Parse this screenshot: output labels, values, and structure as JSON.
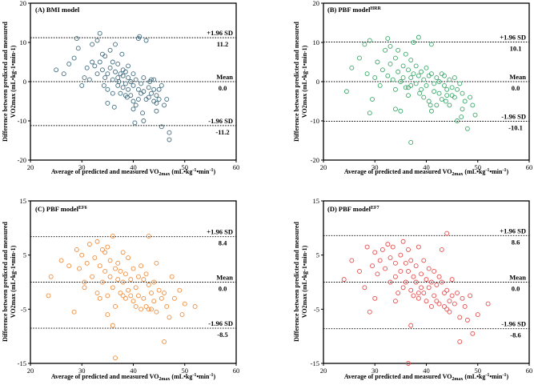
{
  "chart_data": [
    {
      "type": "scatter",
      "title": "(A) BMI model",
      "title_sup": "",
      "xlabel_prefix": "Average of predicted and measured VO",
      "xlabel_sub": "2max",
      "xlabel_suffix": " (mL•kg",
      "xlabel_exp1": "-1",
      "xlabel_mid": "•min",
      "xlabel_exp2": "-1",
      "xlabel_end": ")",
      "ylabel_line1": "Difference between predicted and measured",
      "ylabel_line2": "VO2max (mL•kg-1•min-1)",
      "xlim": [
        20,
        60
      ],
      "ylim": [
        -20,
        20
      ],
      "xticks": [
        20,
        30,
        40,
        50,
        60
      ],
      "yticks": [
        -20,
        -10,
        0,
        10,
        20
      ],
      "color": "#3f6b7f",
      "lines": [
        {
          "y": 11.2,
          "label_top": "+1.96 SD",
          "label_bottom": "11.2"
        },
        {
          "y": 0.0,
          "label_top": "Mean",
          "label_bottom": "0.0"
        },
        {
          "y": -11.2,
          "label_top": "-1.96 SD",
          "label_bottom": "-11.2"
        }
      ],
      "x": [
        25.0,
        26.5,
        27.5,
        28.5,
        29.0,
        29.3,
        30.0,
        30.5,
        31.0,
        31.5,
        32.0,
        32.0,
        32.5,
        33.0,
        33.0,
        33.5,
        33.5,
        34.0,
        34.0,
        34.3,
        34.5,
        34.5,
        35.0,
        35.0,
        35.0,
        35.5,
        35.5,
        36.0,
        36.0,
        36.0,
        36.5,
        36.5,
        37.0,
        37.0,
        37.0,
        37.2,
        37.5,
        37.5,
        37.8,
        38.0,
        38.0,
        38.0,
        38.5,
        38.5,
        38.8,
        39.0,
        39.0,
        39.0,
        39.5,
        39.5,
        40.0,
        40.0,
        40.0,
        40.3,
        40.5,
        40.5,
        41.0,
        41.0,
        41.0,
        41.2,
        41.5,
        41.5,
        42.0,
        42.0,
        42.0,
        42.5,
        42.5,
        43.0,
        43.0,
        43.2,
        43.5,
        43.5,
        44.0,
        44.0,
        44.0,
        44.5,
        44.5,
        45.0,
        45.0,
        45.5,
        45.5,
        46.0,
        46.5,
        47.0,
        47.0,
        44.5,
        40.0,
        38.5,
        36.3,
        41.8
      ],
      "y": [
        3.0,
        2.0,
        4.5,
        6.0,
        11.0,
        8.5,
        -1.0,
        1.0,
        3.5,
        0.5,
        5.0,
        9.5,
        4.0,
        2.0,
        10.5,
        12.3,
        5.0,
        7.0,
        3.0,
        -1.0,
        1.0,
        6.5,
        2.0,
        -2.0,
        -5.5,
        8.0,
        3.5,
        0.5,
        -3.0,
        5.0,
        2.5,
        9.5,
        1.0,
        -1.0,
        4.5,
        0.0,
        2.0,
        -3.0,
        7.0,
        1.5,
        -1.5,
        3.0,
        -0.5,
        2.5,
        -4.0,
        1.0,
        -2.0,
        4.0,
        -3.5,
        0.0,
        2.0,
        -1.0,
        -5.0,
        -10.5,
        0.5,
        -6.0,
        11.0,
        -2.0,
        -4.5,
        11.5,
        -0.5,
        -3.0,
        1.0,
        -2.5,
        -10.0,
        -4.5,
        10.5,
        -1.5,
        -4.0,
        0.0,
        -3.0,
        0.5,
        -2.0,
        -5.0,
        0.5,
        -3.5,
        -7.5,
        -2.0,
        -4.5,
        -1.0,
        -11.5,
        -6.0,
        -4.5,
        -13.0,
        -14.8,
        -5.5,
        -7.0,
        -3.5,
        -6.5,
        -8.0
      ]
    },
    {
      "type": "scatter",
      "title": "(B) PBF model",
      "title_sup": "HRR",
      "xlabel_prefix": "Average of predicted and measured VO",
      "xlabel_sub": "2max",
      "xlabel_suffix": " (mL•kg",
      "xlabel_exp1": "-1",
      "xlabel_mid": "•min",
      "xlabel_exp2": "-1",
      "xlabel_end": ")",
      "ylabel_line1": "Difference between predicted and measured",
      "ylabel_line2": "VO2max (mL•kg-1•min-1)",
      "xlim": [
        20,
        60
      ],
      "ylim": [
        -20,
        20
      ],
      "xticks": [
        20,
        30,
        40,
        50,
        60
      ],
      "yticks": [
        -20,
        -10,
        0,
        10,
        20
      ],
      "color": "#3aa86a",
      "lines": [
        {
          "y": 10.1,
          "label_top": "+1.96 SD",
          "label_bottom": "10.1"
        },
        {
          "y": 0.0,
          "label_top": "Mean",
          "label_bottom": "0.0"
        },
        {
          "y": -10.1,
          "label_top": "-1.96 SD",
          "label_bottom": "-10.1"
        }
      ],
      "x": [
        24.5,
        25.5,
        27.0,
        28.0,
        28.5,
        29.0,
        29.5,
        30.0,
        30.5,
        31.0,
        31.5,
        32.0,
        32.5,
        32.5,
        33.0,
        33.0,
        33.5,
        34.0,
        34.0,
        34.5,
        34.5,
        35.0,
        35.0,
        35.5,
        35.5,
        36.0,
        36.0,
        36.5,
        36.5,
        37.0,
        37.0,
        37.0,
        37.5,
        37.5,
        38.0,
        38.0,
        38.5,
        38.5,
        39.0,
        39.0,
        39.5,
        39.5,
        40.0,
        40.0,
        40.5,
        40.5,
        41.0,
        41.0,
        41.5,
        41.5,
        42.0,
        42.0,
        42.5,
        42.5,
        43.0,
        43.0,
        43.5,
        43.5,
        44.0,
        44.0,
        44.5,
        44.5,
        45.0,
        45.0,
        45.5,
        45.5,
        46.0,
        46.0,
        46.5,
        47.0,
        47.0,
        47.5,
        48.0,
        48.5,
        49.0,
        49.5,
        37.0,
        36.5,
        29.0,
        34.0,
        41.0,
        43.8,
        46.8,
        38.7,
        40.8
      ],
      "y": [
        -2.5,
        3.5,
        6.0,
        9.5,
        2.0,
        10.5,
        -4.5,
        1.0,
        5.0,
        -1.0,
        3.0,
        8.0,
        11.0,
        1.5,
        4.5,
        9.0,
        0.5,
        6.0,
        -2.0,
        2.5,
        8.0,
        0.0,
        -7.5,
        4.0,
        1.0,
        -1.5,
        7.0,
        3.0,
        -3.5,
        1.0,
        5.5,
        -1.0,
        2.0,
        10.0,
        4.0,
        -0.5,
        1.5,
        11.3,
        2.5,
        -2.0,
        0.5,
        -4.0,
        3.5,
        -1.0,
        1.5,
        -5.0,
        2.0,
        9.5,
        -0.5,
        -2.5,
        1.0,
        -6.0,
        0.0,
        -3.0,
        2.0,
        -4.5,
        -1.0,
        1.5,
        -2.0,
        -3.5,
        0.5,
        -6.0,
        -1.5,
        -3.5,
        1.0,
        -4.0,
        -2.0,
        -10.0,
        -0.5,
        -3.0,
        -7.0,
        -5.0,
        -12.0,
        -4.0,
        -6.0,
        -8.5,
        -15.5,
        -1.5,
        -8.0,
        -7.0,
        -7.5,
        -5.0,
        -9.0,
        -3.0,
        -6.0
      ]
    },
    {
      "type": "scatter",
      "title": "(C) PBF model",
      "title_sup": "EF6",
      "xlabel_prefix": "Average of predicted and measured VO",
      "xlabel_sub": "2max",
      "xlabel_suffix": " (mL•kg",
      "xlabel_exp1": "-1",
      "xlabel_mid": "•min",
      "xlabel_exp2": "-1",
      "xlabel_end": ")",
      "ylabel_line1": "Difference between predicted and measured",
      "ylabel_line2": "VO2max (mL•kg-1•min-1)",
      "xlim": [
        20,
        60
      ],
      "ylim": [
        -15,
        15
      ],
      "xticks": [
        20,
        30,
        40,
        50,
        60
      ],
      "yticks": [
        -15,
        -5,
        5,
        15
      ],
      "ytick_labels": [
        "-15",
        "-5",
        "5",
        "15"
      ],
      "color": "#f28c38",
      "lines": [
        {
          "y": 8.4,
          "label_top": "+1.96 SD",
          "label_bottom": "8.4"
        },
        {
          "y": 0.0,
          "label_top": "Mean",
          "label_bottom": "0.0"
        },
        {
          "y": -8.5,
          "label_top": "-1.96 SD",
          "label_bottom": "-8.5"
        }
      ],
      "x": [
        23.5,
        24.0,
        26.0,
        27.5,
        28.5,
        29.0,
        29.5,
        30.0,
        30.5,
        30.5,
        31.0,
        31.5,
        32.0,
        32.5,
        33.0,
        33.0,
        33.5,
        34.0,
        34.0,
        34.5,
        34.5,
        35.0,
        35.0,
        35.5,
        35.5,
        36.0,
        36.0,
        36.5,
        36.5,
        37.0,
        37.0,
        37.5,
        37.5,
        38.0,
        38.0,
        38.5,
        38.5,
        39.0,
        39.0,
        39.5,
        39.5,
        40.0,
        40.0,
        40.5,
        40.5,
        41.0,
        41.0,
        41.5,
        41.5,
        42.0,
        42.0,
        42.5,
        42.5,
        43.0,
        43.0,
        43.5,
        43.5,
        44.0,
        44.0,
        44.5,
        44.5,
        45.0,
        45.5,
        46.0,
        46.5,
        47.0,
        47.5,
        48.0,
        49.0,
        49.5,
        50.0,
        52.0,
        36.0,
        36.5,
        43.0,
        46.0,
        38.0,
        33.5,
        35.0
      ],
      "y": [
        -2.5,
        1.0,
        4.0,
        3.0,
        -5.5,
        6.0,
        2.5,
        5.0,
        -1.0,
        0.0,
        3.5,
        7.0,
        1.0,
        4.5,
        7.5,
        -2.0,
        3.0,
        6.0,
        0.0,
        2.0,
        5.5,
        -2.5,
        6.5,
        1.0,
        4.0,
        8.5,
        -1.0,
        2.5,
        -4.5,
        0.5,
        3.5,
        -2.0,
        2.0,
        0.0,
        5.5,
        -3.0,
        1.5,
        -1.5,
        4.5,
        -2.5,
        0.5,
        -3.5,
        2.5,
        -1.0,
        -4.5,
        1.0,
        -2.5,
        3.0,
        -5.0,
        0.5,
        -3.0,
        1.5,
        -4.5,
        -0.5,
        8.5,
        -2.0,
        -5.0,
        0.0,
        -3.5,
        3.5,
        -5.5,
        -1.5,
        -3.0,
        -2.0,
        -4.5,
        -6.5,
        1.0,
        -3.0,
        -1.5,
        -6.0,
        -4.0,
        -4.5,
        -8.0,
        -14.0,
        -5.0,
        -11.0,
        -2.5,
        -3.0,
        -6.0
      ]
    },
    {
      "type": "scatter",
      "title": "(D) PBF model",
      "title_sup": "EF7",
      "xlabel_prefix": "Average of predicted and measured VO",
      "xlabel_sub": "2max",
      "xlabel_suffix": " (mL•kg",
      "xlabel_exp1": "-1",
      "xlabel_mid": "•min",
      "xlabel_exp2": "-1",
      "xlabel_end": ")",
      "ylabel_line1": "Difference between predicted and measured",
      "ylabel_line2": "VO2max (mL•kg-1•min-1)",
      "xlim": [
        20,
        60
      ],
      "ylim": [
        -15,
        15
      ],
      "xticks": [
        20,
        30,
        40,
        50,
        60
      ],
      "yticks": [
        -15,
        -5,
        5,
        15
      ],
      "ytick_labels": [
        "-15",
        "-5",
        "5",
        "15"
      ],
      "color": "#e84a4a",
      "lines": [
        {
          "y": 8.6,
          "label_top": "+1.96 SD",
          "label_bottom": "8.6"
        },
        {
          "y": 0.0,
          "label_top": "Mean",
          "label_bottom": "0.0"
        },
        {
          "y": -8.6,
          "label_top": "-1.96 SD",
          "label_bottom": "-8.6"
        }
      ],
      "x": [
        24.0,
        25.5,
        27.0,
        28.0,
        28.5,
        29.5,
        30.0,
        30.0,
        30.5,
        31.0,
        31.5,
        32.0,
        32.5,
        33.0,
        33.0,
        33.5,
        34.0,
        34.0,
        34.5,
        35.0,
        35.0,
        35.5,
        35.5,
        36.0,
        36.0,
        36.5,
        36.5,
        37.0,
        37.0,
        37.5,
        37.5,
        38.0,
        38.0,
        38.5,
        38.5,
        39.0,
        39.0,
        39.5,
        39.5,
        40.0,
        40.0,
        40.5,
        40.5,
        41.0,
        41.0,
        41.5,
        41.5,
        42.0,
        42.0,
        42.5,
        42.5,
        43.0,
        43.0,
        43.5,
        43.5,
        44.0,
        44.0,
        44.5,
        44.5,
        45.0,
        45.0,
        45.5,
        46.0,
        46.5,
        47.0,
        47.5,
        48.0,
        48.5,
        49.0,
        50.0,
        52.0,
        36.5,
        37.0,
        44.0,
        46.5,
        38.5,
        34.0,
        29.0
      ],
      "y": [
        0.5,
        4.0,
        2.0,
        -1.0,
        6.5,
        3.0,
        5.5,
        -3.0,
        1.5,
        4.0,
        6.0,
        2.5,
        7.0,
        0.0,
        4.5,
        6.5,
        1.0,
        3.5,
        -2.0,
        5.0,
        2.0,
        7.5,
        -1.0,
        3.5,
        0.0,
        6.0,
        2.0,
        -1.5,
        4.0,
        1.0,
        -2.5,
        3.0,
        0.0,
        6.5,
        -3.0,
        1.5,
        -1.0,
        4.0,
        -2.0,
        0.5,
        -3.5,
        2.5,
        -1.0,
        0.0,
        -4.5,
        2.0,
        -2.5,
        -0.5,
        -3.5,
        1.0,
        -4.0,
        0.0,
        6.0,
        -2.0,
        -4.5,
        9.0,
        -1.5,
        -3.5,
        -5.5,
        0.5,
        -2.5,
        -4.0,
        -2.0,
        -6.5,
        -3.0,
        -4.5,
        -7.0,
        -2.5,
        -9.5,
        -6.0,
        -4.0,
        -15.0,
        -8.0,
        -5.0,
        -11.0,
        -2.0,
        -3.5,
        -5.5
      ]
    }
  ]
}
